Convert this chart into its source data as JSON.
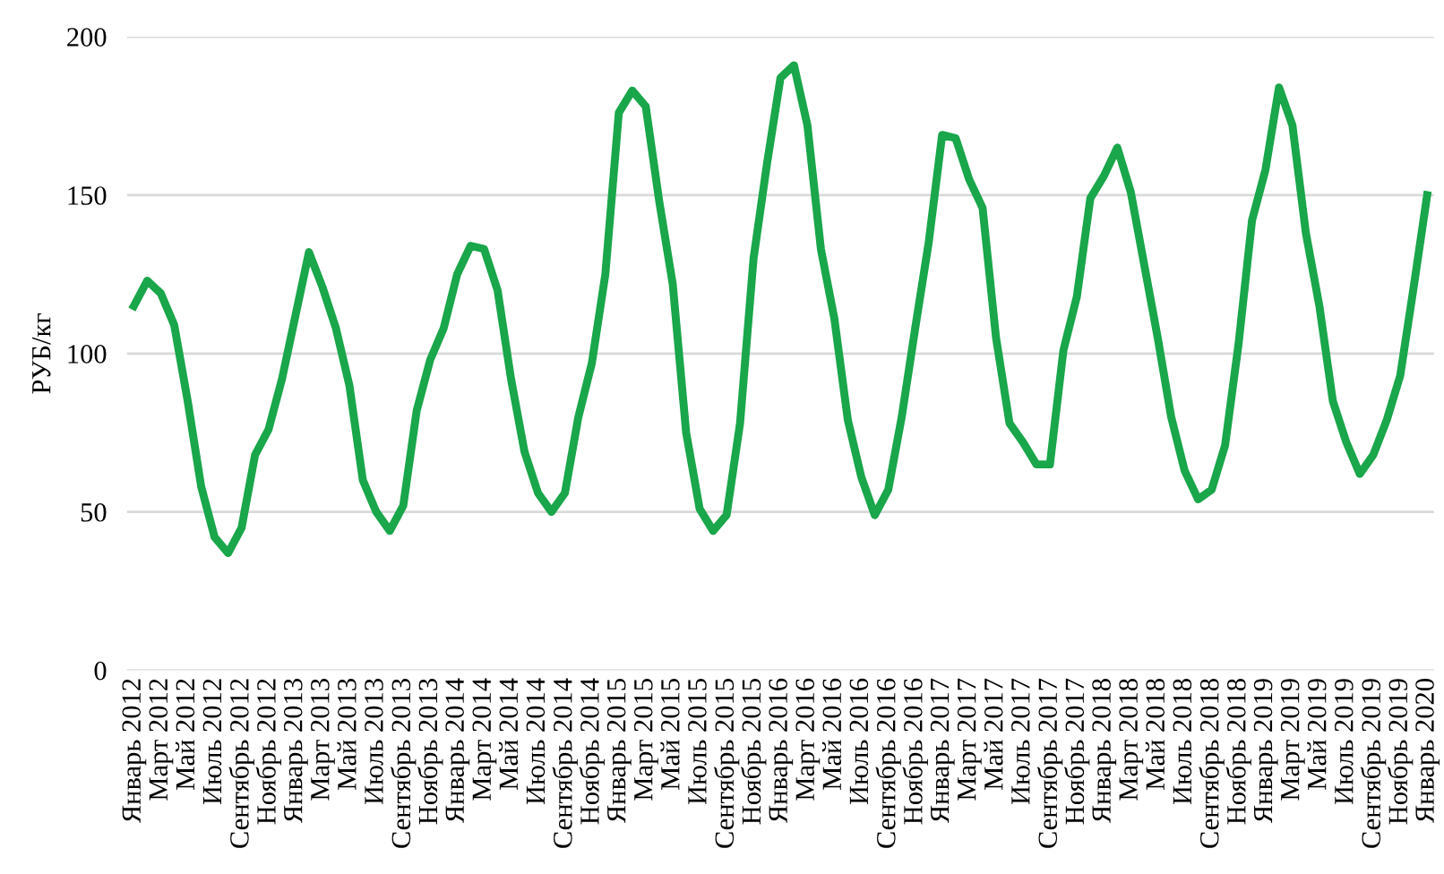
{
  "chart_data": {
    "type": "line",
    "ylabel": "РУБ/кг",
    "categories": [
      "Январь 2012",
      null,
      "Март 2012",
      null,
      "Май 2012",
      null,
      "Июль 2012",
      null,
      "Сентябрь 2012",
      null,
      "Ноябрь 2012",
      null,
      "Январь 2013",
      null,
      "Март 2013",
      null,
      "Май 2013",
      null,
      "Июль 2013",
      null,
      "Сентябрь 2013",
      null,
      "Ноябрь 2013",
      null,
      "Январь 2014",
      null,
      "Март 2014",
      null,
      "Май 2014",
      null,
      "Июль 2014",
      null,
      "Сентябрь 2014",
      null,
      "Ноябрь 2014",
      null,
      "Январь 2015",
      null,
      "Март 2015",
      null,
      "Май 2015",
      null,
      "Июль 2015",
      null,
      "Сентябрь 2015",
      null,
      "Ноябрь 2015",
      null,
      "Январь 2016",
      null,
      "Март 2016",
      null,
      "Май 2016",
      null,
      "Июль 2016",
      null,
      "Сентябрь 2016",
      null,
      "Ноябрь 2016",
      null,
      "Январь 2017",
      null,
      "Март 2017",
      null,
      "Май 2017",
      null,
      "Июль 2017",
      null,
      "Сентябрь 2017",
      null,
      "Ноябрь 2017",
      null,
      "Январь 2018",
      null,
      "Март 2018",
      null,
      "Май 2018",
      null,
      "Июль 2018",
      null,
      "Сентябрь 2018",
      null,
      "Ноябрь 2018",
      null,
      "Январь 2019",
      null,
      "Март 2019",
      null,
      "Май 2019",
      null,
      "Июль 2019",
      null,
      "Сентябрь 2019",
      null,
      "Ноябрь 2019",
      null,
      "Январь 2020"
    ],
    "series": [
      {
        "color": "#1aa64a",
        "values": [
          115,
          123,
          119,
          109,
          85,
          58,
          42,
          37,
          45,
          68,
          76,
          92,
          112,
          132,
          121,
          108,
          90,
          60,
          50,
          44,
          52,
          82,
          98,
          108,
          125,
          134,
          133,
          120,
          92,
          69,
          56,
          50,
          56,
          80,
          97,
          125,
          176,
          183,
          178,
          148,
          122,
          75,
          51,
          44,
          49,
          78,
          130,
          160,
          187,
          191,
          172,
          133,
          111,
          79,
          61,
          49,
          57,
          80,
          108,
          135,
          169,
          168,
          155,
          146,
          105,
          78,
          72,
          65,
          65,
          101,
          118,
          149,
          156,
          165,
          151,
          128,
          105,
          80,
          63,
          54,
          57,
          71,
          103,
          142,
          158,
          184,
          172,
          138,
          115,
          85,
          72,
          62,
          68,
          79,
          93,
          121,
          150
        ]
      }
    ],
    "ylim": [
      0,
      200
    ],
    "yticks": [
      0,
      50,
      100,
      150,
      200
    ],
    "grid": "y",
    "legend": false,
    "marker": "none",
    "line_style": "solid"
  }
}
